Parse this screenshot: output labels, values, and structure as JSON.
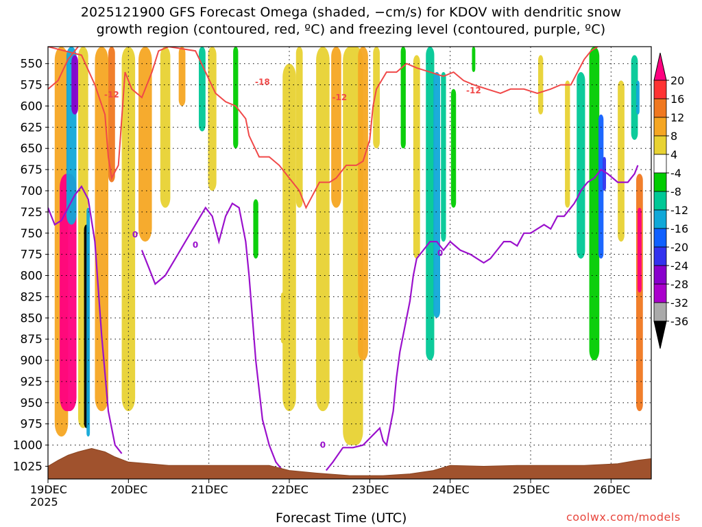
{
  "title_line1": "2025121900 GFS Forecast Omega (shaded, −cm/s) for KDOV with dendritic snow",
  "title_line2": "growth region (contoured, red, ºC) and freezing level (contoured, purple, ºC)",
  "credit": "coolwx.com/models",
  "chart_data": {
    "type": "heatmap",
    "xlabel": "Forecast Time (UTC)",
    "ylabel": "",
    "x_ticks": [
      "19DEC",
      "20DEC",
      "21DEC",
      "22DEC",
      "23DEC",
      "24DEC",
      "25DEC",
      "26DEC"
    ],
    "x_tick_year": "2025",
    "x_range_hours": [
      0,
      180
    ],
    "y_ticks": [
      550,
      575,
      600,
      625,
      650,
      675,
      700,
      725,
      750,
      775,
      800,
      825,
      850,
      875,
      900,
      925,
      950,
      975,
      1000,
      1025
    ],
    "y_range": [
      530,
      1040
    ],
    "grid": true,
    "colorbar": {
      "labels": [
        "20",
        "16",
        "12",
        "8",
        "4",
        "-4",
        "-8",
        "-12",
        "-16",
        "-20",
        "-24",
        "-28",
        "-32",
        "-36"
      ],
      "colors": [
        "#ff0080",
        "#ff3333",
        "#f07820",
        "#f5a623",
        "#e8d233",
        "#ffffff",
        "#00cc00",
        "#00c896",
        "#10a8d8",
        "#1060ff",
        "#3333ee",
        "#8800cc",
        "#aa00cc",
        "#aaaaaa",
        "#000000"
      ],
      "boundaries": [
        24,
        20,
        16,
        12,
        8,
        4,
        -4,
        -8,
        -12,
        -16,
        -20,
        -24,
        -28,
        -32,
        -36,
        -40
      ]
    },
    "contour_labels": {
      "dgz": [
        "-12",
        "-18",
        "-12",
        "-12"
      ],
      "freezing": [
        "0",
        "0",
        "0",
        "0"
      ]
    },
    "omega_features": [
      {
        "t": 4,
        "p0": 530,
        "p1": 990,
        "w": 4,
        "v": 10
      },
      {
        "t": 6,
        "p0": 680,
        "p1": 960,
        "w": 5,
        "v": 22
      },
      {
        "t": 7,
        "p0": 530,
        "p1": 740,
        "w": 3,
        "v": -12
      },
      {
        "t": 8,
        "p0": 540,
        "p1": 610,
        "w": 2,
        "v": -24
      },
      {
        "t": 10.5,
        "p0": 530,
        "p1": 980,
        "w": 3,
        "v": 6
      },
      {
        "t": 11.5,
        "p0": 740,
        "p1": 980,
        "w": 1.5,
        "v": -36
      },
      {
        "t": 12,
        "p0": 720,
        "p1": 990,
        "w": 1,
        "v": -12
      },
      {
        "t": 16,
        "p0": 530,
        "p1": 960,
        "w": 4,
        "v": 9
      },
      {
        "t": 19,
        "p0": 530,
        "p1": 690,
        "w": 2,
        "v": 13
      },
      {
        "t": 24,
        "p0": 530,
        "p1": 960,
        "w": 4,
        "v": 7
      },
      {
        "t": 29,
        "p0": 530,
        "p1": 760,
        "w": 4,
        "v": 9
      },
      {
        "t": 35,
        "p0": 530,
        "p1": 720,
        "w": 3,
        "v": 6
      },
      {
        "t": 40,
        "p0": 530,
        "p1": 600,
        "w": 2,
        "v": 11
      },
      {
        "t": 46,
        "p0": 530,
        "p1": 630,
        "w": 2,
        "v": -8
      },
      {
        "t": 49,
        "p0": 530,
        "p1": 700,
        "w": 2.5,
        "v": 5
      },
      {
        "t": 56,
        "p0": 530,
        "p1": 650,
        "w": 1.5,
        "v": -7
      },
      {
        "t": 62,
        "p0": 710,
        "p1": 780,
        "w": 1.5,
        "v": -7
      },
      {
        "t": 70,
        "p0": 820,
        "p1": 880,
        "w": 1,
        "v": 5
      },
      {
        "t": 72,
        "p0": 550,
        "p1": 960,
        "w": 4,
        "v": 5
      },
      {
        "t": 75,
        "p0": 530,
        "p1": 720,
        "w": 2,
        "v": 5
      },
      {
        "t": 82,
        "p0": 530,
        "p1": 960,
        "w": 4,
        "v": 5
      },
      {
        "t": 86,
        "p0": 530,
        "p1": 720,
        "w": 3,
        "v": 10
      },
      {
        "t": 91,
        "p0": 530,
        "p1": 1000,
        "w": 6,
        "v": 6
      },
      {
        "t": 94,
        "p0": 530,
        "p1": 900,
        "w": 3,
        "v": 9
      },
      {
        "t": 98,
        "p0": 530,
        "p1": 650,
        "w": 2,
        "v": 5
      },
      {
        "t": 106,
        "p0": 530,
        "p1": 650,
        "w": 1.5,
        "v": -7
      },
      {
        "t": 110,
        "p0": 540,
        "p1": 780,
        "w": 2,
        "v": 6
      },
      {
        "t": 114,
        "p0": 530,
        "p1": 900,
        "w": 2.5,
        "v": -8
      },
      {
        "t": 116,
        "p0": 560,
        "p1": 850,
        "w": 2,
        "v": -13
      },
      {
        "t": 118,
        "p0": 560,
        "p1": 760,
        "w": 1.5,
        "v": -8
      },
      {
        "t": 121,
        "p0": 580,
        "p1": 720,
        "w": 1.5,
        "v": -7
      },
      {
        "t": 127,
        "p0": 530,
        "p1": 560,
        "w": 1,
        "v": -7
      },
      {
        "t": 147,
        "p0": 540,
        "p1": 610,
        "w": 1.5,
        "v": 5
      },
      {
        "t": 155,
        "p0": 570,
        "p1": 720,
        "w": 1.5,
        "v": 5
      },
      {
        "t": 159,
        "p0": 560,
        "p1": 780,
        "w": 2.5,
        "v": -8
      },
      {
        "t": 163,
        "p0": 530,
        "p1": 900,
        "w": 3,
        "v": -7
      },
      {
        "t": 165,
        "p0": 610,
        "p1": 780,
        "w": 1.5,
        "v": -17
      },
      {
        "t": 166,
        "p0": 660,
        "p1": 700,
        "w": 1,
        "v": -22
      },
      {
        "t": 171,
        "p0": 570,
        "p1": 760,
        "w": 2,
        "v": 5
      },
      {
        "t": 175,
        "p0": 540,
        "p1": 640,
        "w": 2,
        "v": -8
      },
      {
        "t": 176,
        "p0": 570,
        "p1": 610,
        "w": 1,
        "v": -14
      },
      {
        "t": 176.5,
        "p0": 680,
        "p1": 960,
        "w": 2,
        "v": 14
      },
      {
        "t": 176.5,
        "p0": 720,
        "p1": 820,
        "w": 1.2,
        "v": 22
      }
    ],
    "dgz_top": [
      [
        0,
        580
      ],
      [
        3,
        570
      ],
      [
        6,
        545
      ],
      [
        9,
        530
      ]
    ],
    "dgz_bottom": [
      [
        0,
        530
      ],
      [
        10,
        540
      ],
      [
        14,
        575
      ],
      [
        17,
        610
      ],
      [
        18,
        660
      ],
      [
        19,
        685
      ],
      [
        21,
        670
      ],
      [
        23,
        560
      ],
      [
        25,
        580
      ],
      [
        28,
        590
      ],
      [
        31,
        560
      ],
      [
        33,
        535
      ],
      [
        36,
        530
      ],
      [
        44,
        535
      ],
      [
        47,
        560
      ],
      [
        50,
        585
      ],
      [
        53,
        595
      ],
      [
        56,
        600
      ],
      [
        59,
        615
      ],
      [
        60,
        635
      ],
      [
        63,
        660
      ],
      [
        66,
        660
      ],
      [
        69,
        670
      ],
      [
        72,
        685
      ],
      [
        75,
        700
      ],
      [
        77,
        720
      ],
      [
        79,
        705
      ],
      [
        81,
        690
      ],
      [
        84,
        690
      ],
      [
        86,
        685
      ],
      [
        89,
        670
      ],
      [
        92,
        670
      ],
      [
        94,
        665
      ],
      [
        96,
        640
      ],
      [
        97,
        600
      ],
      [
        98,
        580
      ],
      [
        101,
        560
      ],
      [
        104,
        560
      ],
      [
        107,
        550
      ],
      [
        110,
        555
      ],
      [
        114,
        560
      ],
      [
        118,
        565
      ],
      [
        121,
        560
      ],
      [
        124,
        570
      ],
      [
        127,
        575
      ],
      [
        131,
        580
      ],
      [
        135,
        585
      ],
      [
        138,
        580
      ],
      [
        142,
        580
      ],
      [
        146,
        585
      ],
      [
        150,
        580
      ],
      [
        153,
        575
      ],
      [
        156,
        575
      ],
      [
        158,
        560
      ],
      [
        160,
        545
      ],
      [
        162,
        535
      ],
      [
        164,
        530
      ]
    ],
    "freezing_level": [
      [
        0,
        720
      ],
      [
        2,
        740
      ],
      [
        4,
        735
      ],
      [
        6,
        720
      ],
      [
        8,
        705
      ],
      [
        10,
        695
      ],
      [
        12,
        710
      ],
      [
        14,
        760
      ],
      [
        16,
        870
      ],
      [
        18,
        960
      ],
      [
        20,
        1000
      ],
      [
        22,
        1010
      ]
    ],
    "freezing_level_2": [
      [
        28,
        770
      ],
      [
        30,
        790
      ],
      [
        32,
        810
      ],
      [
        35,
        800
      ],
      [
        38,
        780
      ],
      [
        41,
        760
      ],
      [
        44,
        740
      ],
      [
        47,
        720
      ],
      [
        49,
        730
      ],
      [
        51,
        760
      ],
      [
        53,
        730
      ],
      [
        55,
        715
      ],
      [
        57,
        720
      ],
      [
        59,
        760
      ],
      [
        60,
        800
      ],
      [
        62,
        900
      ],
      [
        64,
        970
      ],
      [
        66,
        1000
      ],
      [
        68,
        1020
      ],
      [
        70,
        1030
      ],
      [
        72,
        1040
      ]
    ],
    "freezing_level_3": [
      [
        83,
        1030
      ],
      [
        85,
        1020
      ],
      [
        88,
        1003
      ],
      [
        91,
        1003
      ],
      [
        94,
        1000
      ],
      [
        97,
        988
      ],
      [
        99,
        980
      ],
      [
        100,
        995
      ],
      [
        101,
        1000
      ],
      [
        102,
        980
      ],
      [
        103,
        960
      ],
      [
        104,
        920
      ],
      [
        105,
        890
      ],
      [
        106,
        870
      ],
      [
        107,
        850
      ],
      [
        108,
        830
      ],
      [
        109,
        800
      ],
      [
        110,
        780
      ],
      [
        112,
        770
      ],
      [
        114,
        760
      ],
      [
        116,
        760
      ],
      [
        118,
        770
      ],
      [
        120,
        760
      ],
      [
        123,
        770
      ],
      [
        126,
        775
      ],
      [
        128,
        780
      ],
      [
        130,
        785
      ],
      [
        132,
        780
      ],
      [
        134,
        770
      ],
      [
        136,
        760
      ],
      [
        138,
        760
      ],
      [
        140,
        765
      ],
      [
        142,
        750
      ],
      [
        144,
        750
      ],
      [
        146,
        745
      ],
      [
        148,
        740
      ],
      [
        150,
        745
      ],
      [
        152,
        730
      ],
      [
        154,
        730
      ],
      [
        156,
        720
      ],
      [
        157,
        715
      ],
      [
        158,
        708
      ],
      [
        159,
        700
      ],
      [
        161,
        690
      ],
      [
        163,
        685
      ],
      [
        165,
        675
      ],
      [
        167,
        680
      ],
      [
        170,
        690
      ],
      [
        173,
        690
      ],
      [
        175,
        680
      ],
      [
        176,
        670
      ]
    ]
  }
}
